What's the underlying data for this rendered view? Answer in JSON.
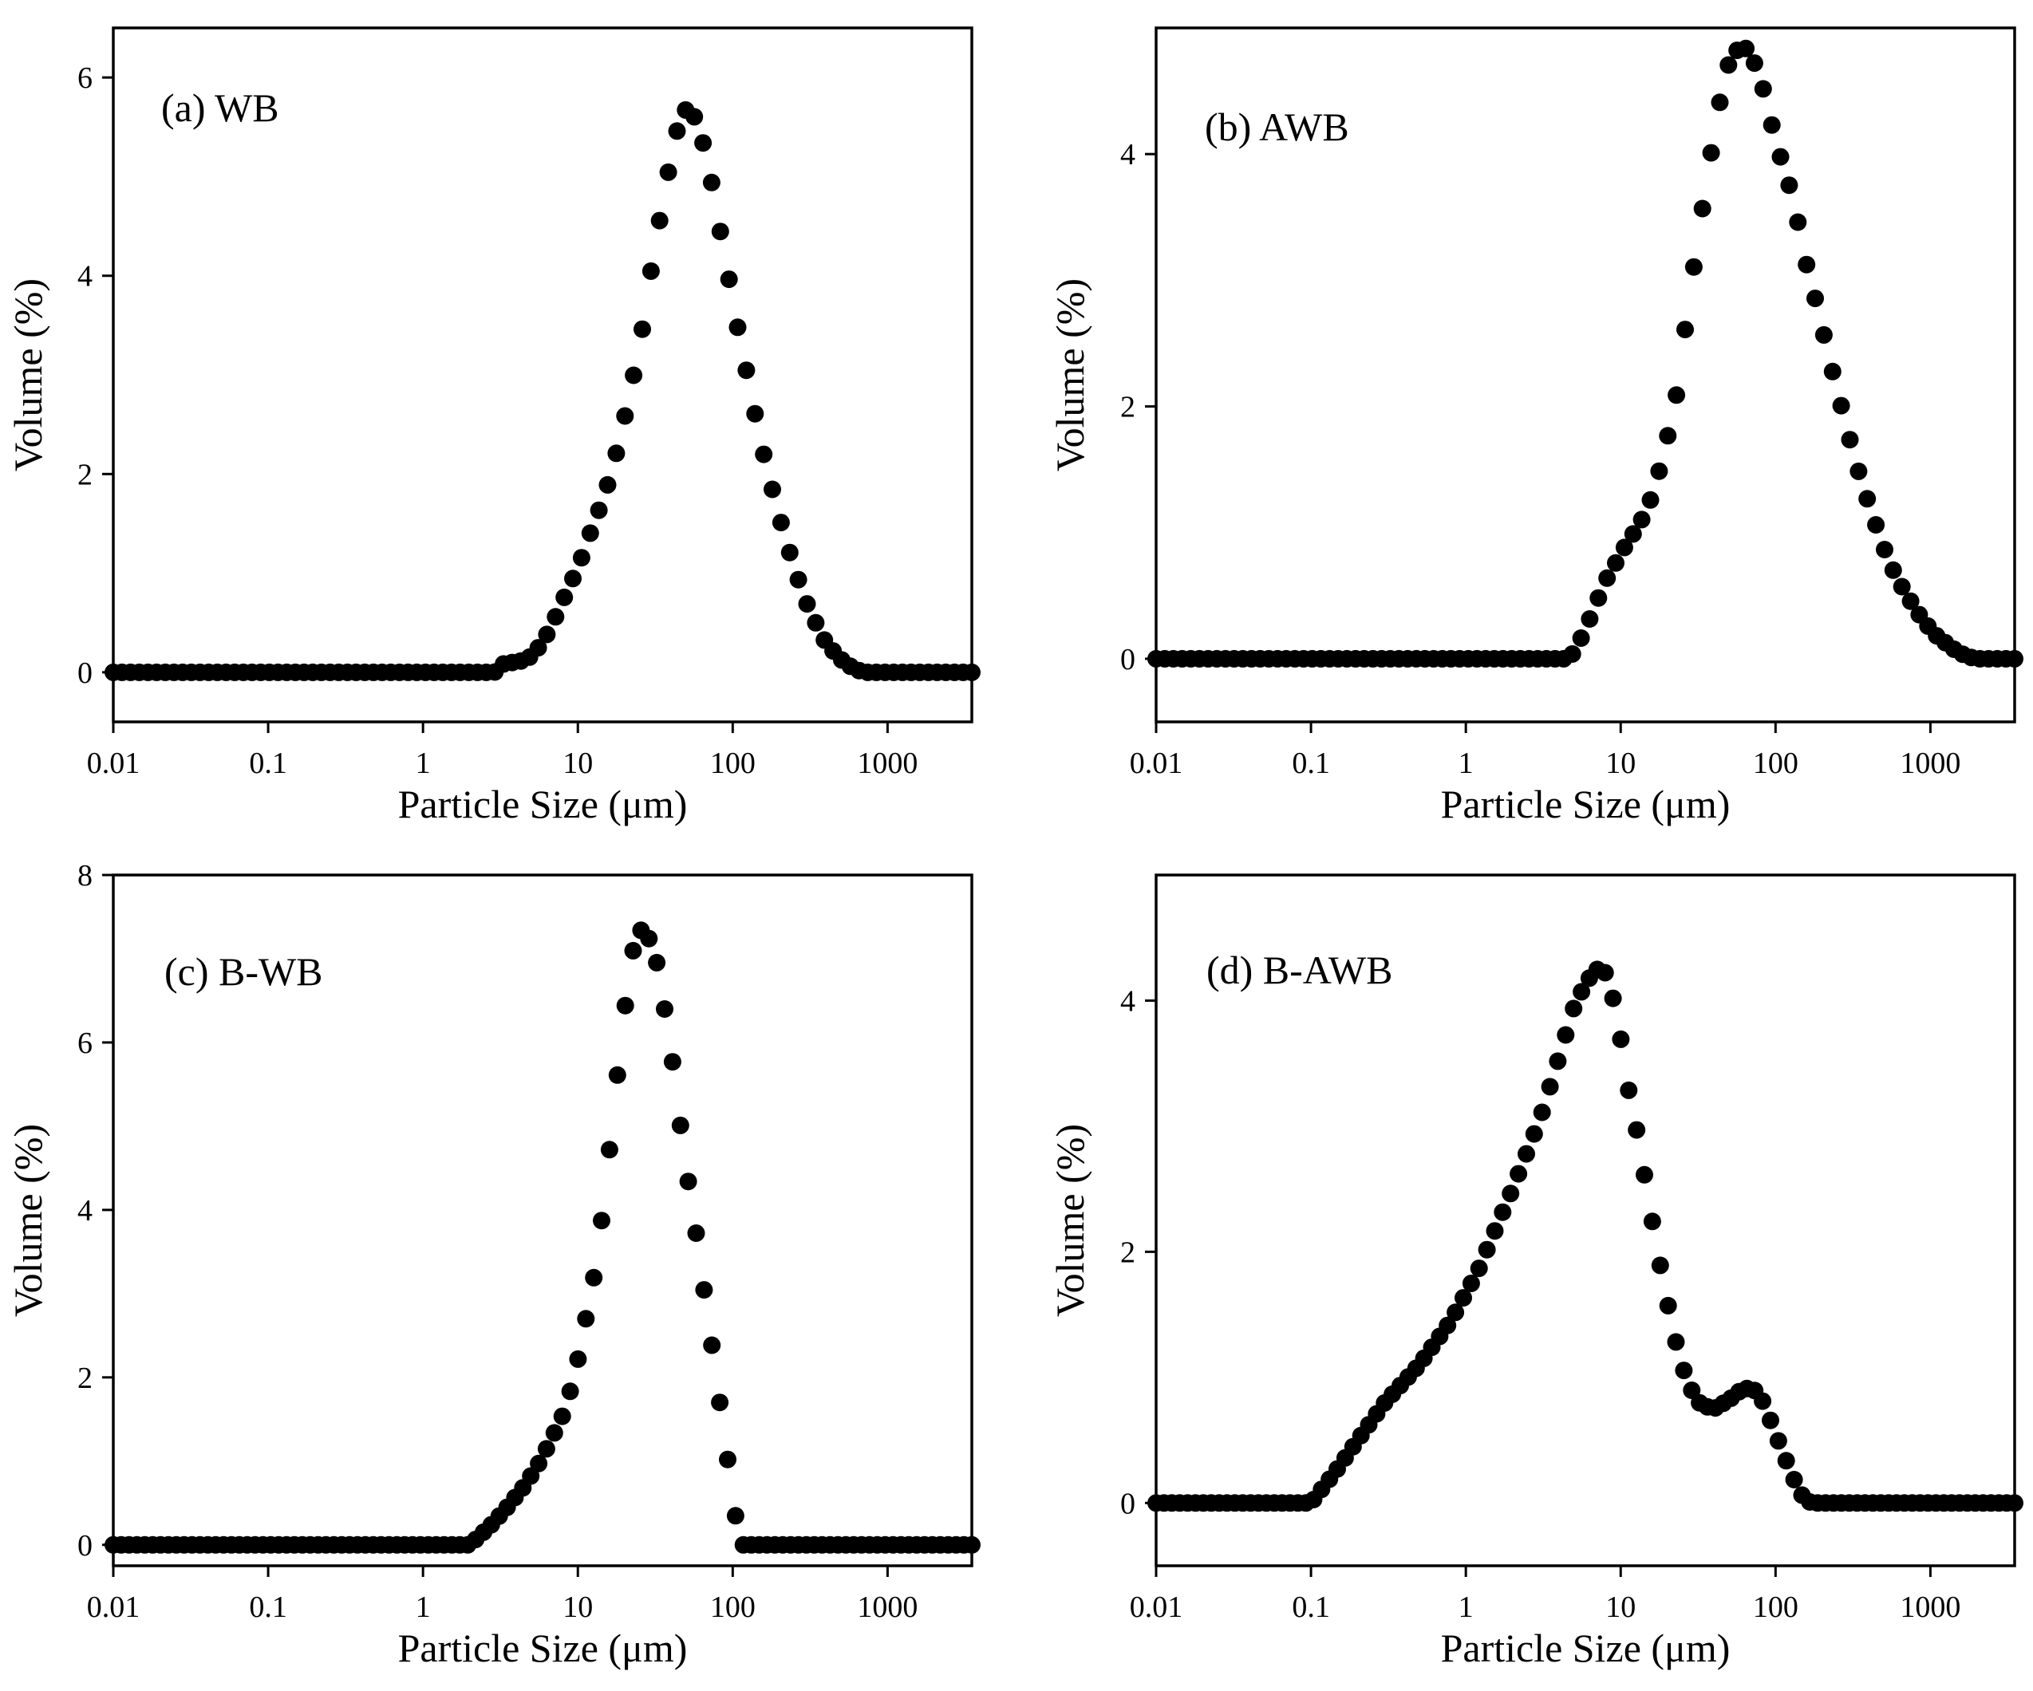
{
  "chart_data": [
    {
      "type": "scatter",
      "label": "(a) WB",
      "xlabel": "Particle Size (μm)",
      "ylabel": "Volume (%)",
      "xscale": "log",
      "xlim": [
        0.01,
        3500
      ],
      "ylim": [
        -0.5,
        6.5
      ],
      "xticks": [
        0.01,
        0.1,
        1,
        10,
        100,
        1000
      ],
      "xtick_labels": [
        "0.01",
        "0.1",
        "1",
        "10",
        "100",
        "1000"
      ],
      "yticks": [
        0,
        2,
        4,
        6
      ],
      "ytick_labels": [
        "0",
        "2",
        "4",
        "6"
      ],
      "curve": [
        [
          0.01,
          0
        ],
        [
          2.9,
          0
        ],
        [
          3.2,
          0.08
        ],
        [
          3.8,
          0.1
        ],
        [
          4.5,
          0.12
        ],
        [
          5.2,
          0.18
        ],
        [
          6.3,
          0.38
        ],
        [
          7.5,
          0.62
        ],
        [
          8.5,
          0.82
        ],
        [
          10,
          1.05
        ],
        [
          12,
          1.4
        ],
        [
          15,
          1.8
        ],
        [
          18,
          2.25
        ],
        [
          22,
          2.85
        ],
        [
          26,
          3.45
        ],
        [
          30,
          4.1
        ],
        [
          35,
          4.7
        ],
        [
          40,
          5.2
        ],
        [
          45,
          5.55
        ],
        [
          50,
          5.68
        ],
        [
          56,
          5.62
        ],
        [
          63,
          5.4
        ],
        [
          72,
          5.0
        ],
        [
          82,
          4.5
        ],
        [
          95,
          3.95
        ],
        [
          110,
          3.4
        ],
        [
          130,
          2.85
        ],
        [
          150,
          2.35
        ],
        [
          180,
          1.85
        ],
        [
          210,
          1.45
        ],
        [
          250,
          1.05
        ],
        [
          300,
          0.7
        ],
        [
          380,
          0.35
        ],
        [
          480,
          0.15
        ],
        [
          600,
          0.04
        ],
        [
          700,
          0
        ],
        [
          3500,
          0
        ]
      ],
      "n_points": 100
    },
    {
      "type": "scatter",
      "label": "(b) AWB",
      "xlabel": "Particle Size (μm)",
      "ylabel": "Volume (%)",
      "xscale": "log",
      "xlim": [
        0.01,
        3500
      ],
      "ylim": [
        -0.5,
        5.0
      ],
      "xticks": [
        0.01,
        0.1,
        1,
        10,
        100,
        1000
      ],
      "xtick_labels": [
        "0.01",
        "0.1",
        "1",
        "10",
        "100",
        "1000"
      ],
      "yticks": [
        0,
        2,
        4
      ],
      "ytick_labels": [
        "0",
        "2",
        "4"
      ],
      "curve": [
        [
          0.01,
          0
        ],
        [
          4.5,
          0
        ],
        [
          5,
          0.05
        ],
        [
          6,
          0.25
        ],
        [
          7,
          0.45
        ],
        [
          8,
          0.62
        ],
        [
          9.5,
          0.78
        ],
        [
          11,
          0.92
        ],
        [
          13,
          1.05
        ],
        [
          15,
          1.2
        ],
        [
          17,
          1.4
        ],
        [
          20,
          1.75
        ],
        [
          23,
          2.1
        ],
        [
          26,
          2.6
        ],
        [
          30,
          3.15
        ],
        [
          35,
          3.7
        ],
        [
          40,
          4.15
        ],
        [
          45,
          4.5
        ],
        [
          50,
          4.72
        ],
        [
          56,
          4.82
        ],
        [
          63,
          4.85
        ],
        [
          70,
          4.78
        ],
        [
          80,
          4.6
        ],
        [
          90,
          4.35
        ],
        [
          100,
          4.1
        ],
        [
          120,
          3.8
        ],
        [
          140,
          3.45
        ],
        [
          160,
          3.1
        ],
        [
          190,
          2.75
        ],
        [
          220,
          2.4
        ],
        [
          260,
          2.05
        ],
        [
          300,
          1.75
        ],
        [
          350,
          1.45
        ],
        [
          420,
          1.15
        ],
        [
          500,
          0.88
        ],
        [
          600,
          0.65
        ],
        [
          750,
          0.45
        ],
        [
          900,
          0.3
        ],
        [
          1100,
          0.18
        ],
        [
          1400,
          0.08
        ],
        [
          1700,
          0.02
        ],
        [
          2000,
          0
        ],
        [
          3500,
          0
        ]
      ],
      "n_points": 100
    },
    {
      "type": "scatter",
      "label": "(c) B-WB",
      "xlabel": "Particle Size (μm)",
      "ylabel": "Volume (%)",
      "xscale": "log",
      "xlim": [
        0.01,
        3500
      ],
      "ylim": [
        -0.25,
        8.0
      ],
      "xticks": [
        0.01,
        0.1,
        1,
        10,
        100,
        1000
      ],
      "xtick_labels": [
        "0.01",
        "0.1",
        "1",
        "10",
        "100",
        "1000"
      ],
      "yticks": [
        0,
        2,
        4,
        6,
        8
      ],
      "ytick_labels": [
        "0",
        "2",
        "4",
        "6",
        "8"
      ],
      "curve": [
        [
          0.01,
          0
        ],
        [
          2.0,
          0
        ],
        [
          2.3,
          0.1
        ],
        [
          2.8,
          0.25
        ],
        [
          3.5,
          0.45
        ],
        [
          4.5,
          0.7
        ],
        [
          5.5,
          0.95
        ],
        [
          6.5,
          1.2
        ],
        [
          8,
          1.55
        ],
        [
          9.5,
          2.0
        ],
        [
          11,
          2.6
        ],
        [
          13,
          3.3
        ],
        [
          15,
          4.2
        ],
        [
          17,
          5.2
        ],
        [
          19,
          6.0
        ],
        [
          21,
          6.7
        ],
        [
          23,
          7.15
        ],
        [
          25,
          7.35
        ],
        [
          28,
          7.3
        ],
        [
          32,
          7.0
        ],
        [
          36,
          6.45
        ],
        [
          41,
          5.75
        ],
        [
          46,
          5.0
        ],
        [
          52,
          4.3
        ],
        [
          60,
          3.55
        ],
        [
          68,
          2.8
        ],
        [
          78,
          2.05
        ],
        [
          88,
          1.3
        ],
        [
          100,
          0.62
        ],
        [
          110,
          0
        ],
        [
          3500,
          0
        ]
      ],
      "n_points": 110
    },
    {
      "type": "scatter",
      "label": "(d) B-AWB",
      "xlabel": "Particle Size (μm)",
      "ylabel": "Volume (%)",
      "xscale": "log",
      "xlim": [
        0.01,
        3500
      ],
      "ylim": [
        -0.5,
        5.0
      ],
      "xticks": [
        0.01,
        0.1,
        1,
        10,
        100,
        1000
      ],
      "xtick_labels": [
        "0.01",
        "0.1",
        "1",
        "10",
        "100",
        "1000"
      ],
      "yticks": [
        0,
        2,
        4
      ],
      "ytick_labels": [
        "0",
        "2",
        "4"
      ],
      "curve": [
        [
          0.01,
          0
        ],
        [
          0.1,
          0
        ],
        [
          0.15,
          0.28
        ],
        [
          0.2,
          0.5
        ],
        [
          0.3,
          0.8
        ],
        [
          0.5,
          1.1
        ],
        [
          0.8,
          1.45
        ],
        [
          1.2,
          1.85
        ],
        [
          2,
          2.5
        ],
        [
          3,
          3.05
        ],
        [
          4,
          3.55
        ],
        [
          5,
          3.95
        ],
        [
          6,
          4.15
        ],
        [
          7,
          4.25
        ],
        [
          8,
          4.22
        ],
        [
          9,
          4.0
        ],
        [
          10,
          3.7
        ],
        [
          11,
          3.35
        ],
        [
          13,
          2.9
        ],
        [
          15,
          2.45
        ],
        [
          17,
          2.05
        ],
        [
          20,
          1.6
        ],
        [
          24,
          1.15
        ],
        [
          28,
          0.92
        ],
        [
          33,
          0.78
        ],
        [
          40,
          0.75
        ],
        [
          50,
          0.82
        ],
        [
          60,
          0.9
        ],
        [
          70,
          0.92
        ],
        [
          80,
          0.85
        ],
        [
          90,
          0.7
        ],
        [
          110,
          0.42
        ],
        [
          130,
          0.2
        ],
        [
          150,
          0.05
        ],
        [
          170,
          0
        ],
        [
          3500,
          0
        ]
      ],
      "n_points": 110
    }
  ]
}
